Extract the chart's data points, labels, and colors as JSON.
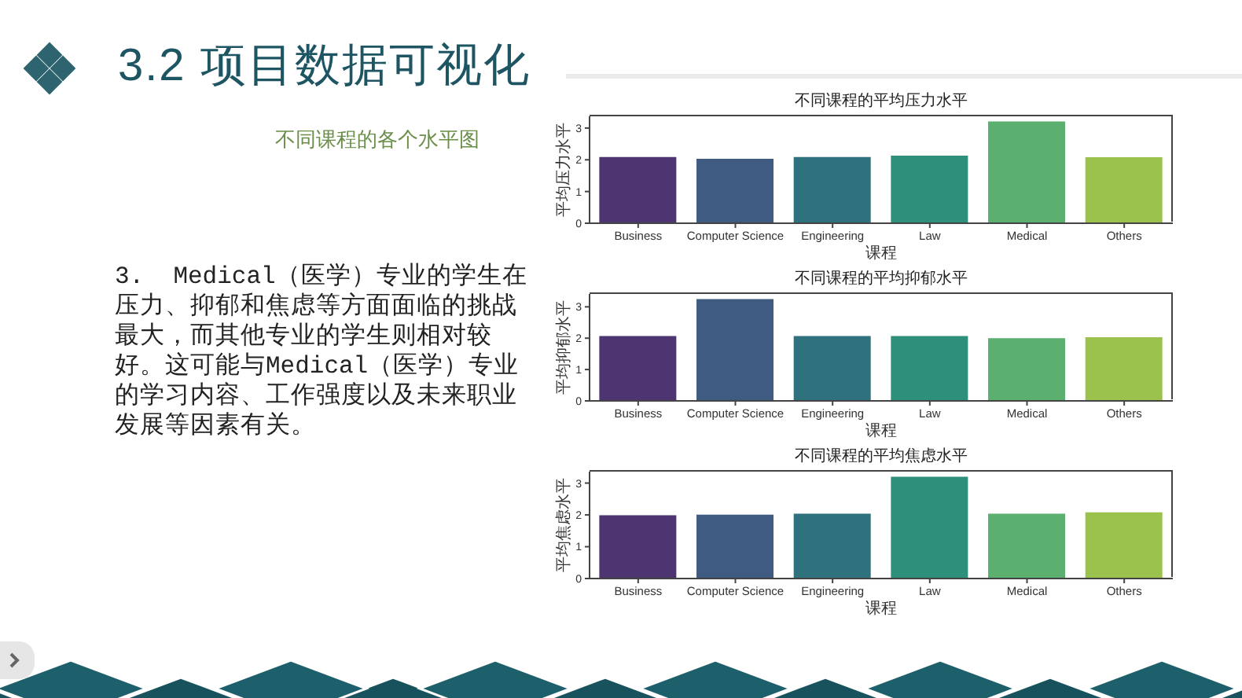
{
  "chart_data": [
    {
      "type": "other",
      "title": "3.2 项目数据可视化",
      "subtitle": "不同课程的各个水平图",
      "annotations": [
        "3.  Medical（医学）专业的学生在压力、抑郁和焦虑等方面面临的挑战最大，而其他专业的学生则相对较好。这可能与Medical（医学）专业的学习内容、工作强度以及未来职业发展等因素有关。"
      ]
    },
    {
      "type": "bar",
      "title": "不同课程的平均压力水平",
      "xlabel": "课程",
      "ylabel": "平均压力水平",
      "categories": [
        "Business",
        "Computer Science",
        "Engineering",
        "Law",
        "Medical",
        "Others"
      ],
      "values": [
        2.09,
        2.03,
        2.09,
        2.13,
        3.21,
        2.08
      ],
      "colors": [
        "#4d3572",
        "#3f5b81",
        "#30717e",
        "#2e8f7b",
        "#5bb06f",
        "#9ac24c"
      ],
      "ylim": [
        0,
        3.37
      ],
      "yticks": [
        0,
        1,
        2,
        3
      ]
    },
    {
      "type": "bar",
      "title": "不同课程的平均抑郁水平",
      "xlabel": "课程",
      "ylabel": "平均抑郁水平",
      "categories": [
        "Business",
        "Computer Science",
        "Engineering",
        "Law",
        "Medical",
        "Others"
      ],
      "values": [
        2.07,
        3.25,
        2.07,
        2.07,
        2.0,
        2.03
      ],
      "colors": [
        "#4d3572",
        "#3f5b81",
        "#30717e",
        "#2e8f7b",
        "#5bb06f",
        "#9ac24c"
      ],
      "ylim": [
        0,
        3.41
      ],
      "yticks": [
        0,
        1,
        2,
        3
      ]
    },
    {
      "type": "bar",
      "title": "不同课程的平均焦虑水平",
      "xlabel": "课程",
      "ylabel": "平均焦虑水平",
      "categories": [
        "Business",
        "Computer Science",
        "Engineering",
        "Law",
        "Medical",
        "Others"
      ],
      "values": [
        1.99,
        2.01,
        2.04,
        3.2,
        2.04,
        2.08
      ],
      "colors": [
        "#4d3572",
        "#3f5b81",
        "#30717e",
        "#2e8f7b",
        "#5bb06f",
        "#9ac24c"
      ],
      "ylim": [
        0,
        3.36
      ],
      "yticks": [
        0,
        1,
        2,
        3
      ]
    }
  ]
}
